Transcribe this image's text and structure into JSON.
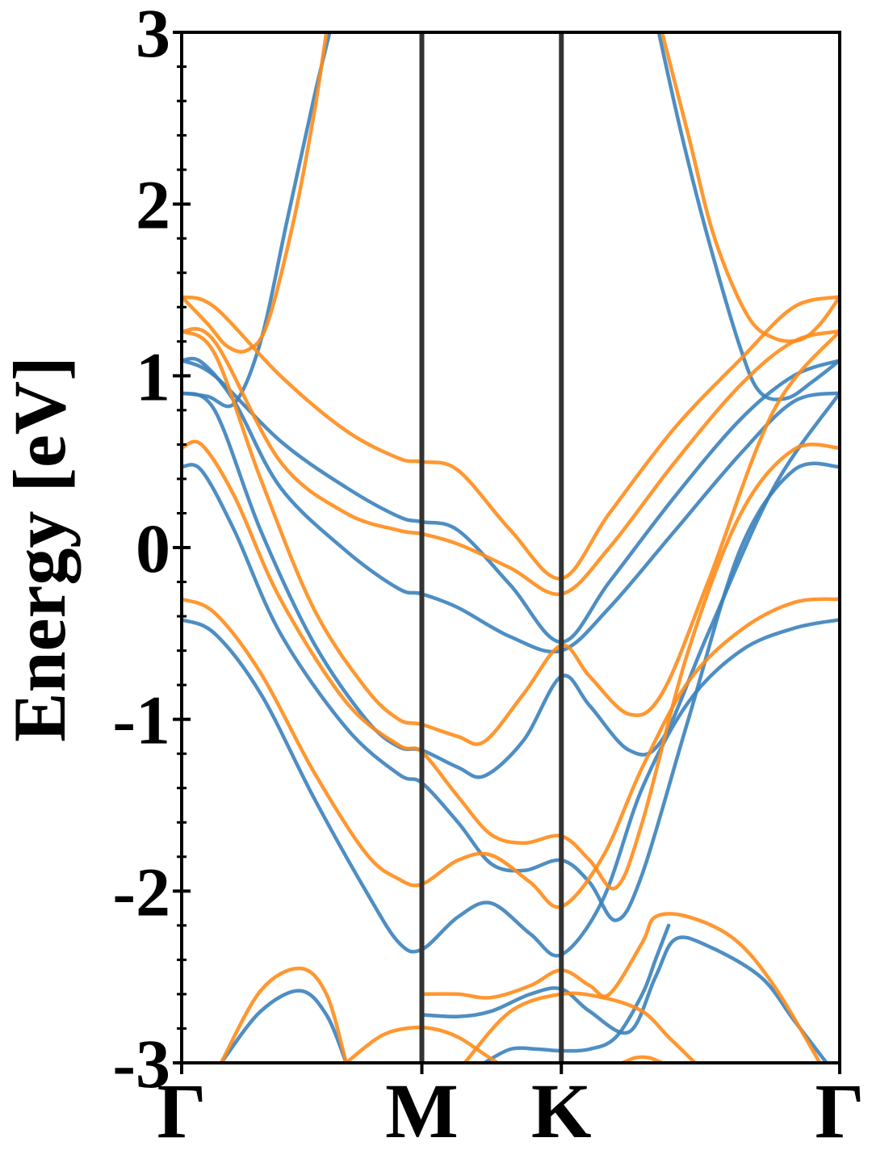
{
  "chart_data": {
    "type": "line",
    "title": "",
    "xlabel": "",
    "ylabel": "Energy [eV]",
    "ylim": [
      -3,
      3
    ],
    "xlim": [
      0,
      1
    ],
    "grid": false,
    "legend": "none",
    "yticks": [
      -3,
      -2,
      -1,
      0,
      1,
      2,
      3
    ],
    "ytick_labels": [
      "-3",
      "-2",
      "-1",
      "0",
      "1",
      "2",
      "3"
    ],
    "xticks": [
      0,
      0.365,
      0.577,
      1
    ],
    "xtick_labels": [
      "Γ",
      "M",
      "K",
      "Γ"
    ],
    "colors": {
      "blue": "#3b82bd",
      "orange": "#ff8c1a",
      "kline": "#333333"
    },
    "series": [
      {
        "color": "#3b82bd",
        "points": [
          [
            0,
            -0.42
          ],
          [
            0.05,
            -0.5
          ],
          [
            0.12,
            -0.85
          ],
          [
            0.2,
            -1.45
          ],
          [
            0.28,
            -2.0
          ],
          [
            0.33,
            -2.3
          ],
          [
            0.365,
            -2.34
          ],
          [
            0.42,
            -2.15
          ],
          [
            0.47,
            -2.07
          ],
          [
            0.53,
            -2.25
          ],
          [
            0.577,
            -2.37
          ],
          [
            0.64,
            -2.05
          ],
          [
            0.7,
            -1.4
          ],
          [
            0.77,
            -0.9
          ],
          [
            0.85,
            -0.6
          ],
          [
            0.93,
            -0.47
          ],
          [
            1,
            -0.42
          ]
        ]
      },
      {
        "color": "#3b82bd",
        "points": [
          [
            0,
            0.47
          ],
          [
            0.03,
            0.45
          ],
          [
            0.08,
            0.1
          ],
          [
            0.15,
            -0.5
          ],
          [
            0.25,
            -1.05
          ],
          [
            0.33,
            -1.32
          ],
          [
            0.365,
            -1.37
          ],
          [
            0.42,
            -1.6
          ],
          [
            0.47,
            -1.84
          ],
          [
            0.52,
            -1.88
          ],
          [
            0.577,
            -1.82
          ],
          [
            0.62,
            -1.95
          ],
          [
            0.66,
            -2.17
          ],
          [
            0.7,
            -1.9
          ],
          [
            0.77,
            -1.0
          ],
          [
            0.85,
            0.0
          ],
          [
            0.93,
            0.45
          ],
          [
            1,
            0.47
          ]
        ]
      },
      {
        "color": "#3b82bd",
        "points": [
          [
            0,
            0.9
          ],
          [
            0.05,
            0.8
          ],
          [
            0.12,
            0.1
          ],
          [
            0.2,
            -0.55
          ],
          [
            0.28,
            -1.0
          ],
          [
            0.33,
            -1.16
          ],
          [
            0.365,
            -1.18
          ],
          [
            0.42,
            -1.28
          ],
          [
            0.46,
            -1.33
          ],
          [
            0.52,
            -1.12
          ],
          [
            0.577,
            -0.75
          ],
          [
            0.62,
            -0.92
          ],
          [
            0.68,
            -1.18
          ],
          [
            0.73,
            -1.12
          ],
          [
            0.8,
            -0.5
          ],
          [
            0.9,
            0.35
          ],
          [
            1,
            0.9
          ]
        ]
      },
      {
        "color": "#3b82bd",
        "points": [
          [
            0,
            1.09
          ],
          [
            0.03,
            1.08
          ],
          [
            0.08,
            0.85
          ],
          [
            0.15,
            0.35
          ],
          [
            0.25,
            -0.02
          ],
          [
            0.33,
            -0.24
          ],
          [
            0.365,
            -0.27
          ],
          [
            0.42,
            -0.35
          ],
          [
            0.5,
            -0.52
          ],
          [
            0.577,
            -0.6
          ],
          [
            0.65,
            -0.35
          ],
          [
            0.75,
            0.1
          ],
          [
            0.85,
            0.55
          ],
          [
            0.93,
            0.85
          ],
          [
            1,
            0.9
          ]
        ]
      },
      {
        "color": "#3b82bd",
        "points": [
          [
            0,
            1.09
          ],
          [
            0.05,
            1.0
          ],
          [
            0.15,
            0.62
          ],
          [
            0.25,
            0.35
          ],
          [
            0.33,
            0.18
          ],
          [
            0.365,
            0.15
          ],
          [
            0.42,
            0.1
          ],
          [
            0.5,
            -0.22
          ],
          [
            0.577,
            -0.55
          ],
          [
            0.65,
            -0.2
          ],
          [
            0.75,
            0.3
          ],
          [
            0.85,
            0.75
          ],
          [
            0.93,
            1.0
          ],
          [
            1,
            1.09
          ]
        ]
      },
      {
        "color": "#3b82bd",
        "points": [
          [
            0,
            0.9
          ],
          [
            0.04,
            0.88
          ],
          [
            0.08,
            0.84
          ],
          [
            0.12,
            1.2
          ],
          [
            0.16,
            1.9
          ],
          [
            0.2,
            2.6
          ],
          [
            0.225,
            3.0
          ]
        ]
      },
      {
        "color": "#3b82bd",
        "points": [
          [
            0.725,
            3.0
          ],
          [
            0.76,
            2.4
          ],
          [
            0.8,
            1.8
          ],
          [
            0.85,
            1.15
          ],
          [
            0.88,
            0.9
          ],
          [
            0.92,
            0.87
          ],
          [
            0.96,
            0.97
          ],
          [
            1,
            1.09
          ]
        ]
      },
      {
        "color": "#3b82bd",
        "points": [
          [
            0.06,
            -3.0
          ],
          [
            0.12,
            -2.7
          ],
          [
            0.18,
            -2.58
          ],
          [
            0.22,
            -2.72
          ],
          [
            0.25,
            -3.0
          ]
        ]
      },
      {
        "color": "#3b82bd",
        "points": [
          [
            0.365,
            -2.72
          ],
          [
            0.42,
            -2.73
          ],
          [
            0.47,
            -2.7
          ],
          [
            0.53,
            -2.6
          ],
          [
            0.577,
            -2.57
          ],
          [
            0.62,
            -2.7
          ],
          [
            0.68,
            -2.82
          ],
          [
            0.72,
            -2.5
          ],
          [
            0.75,
            -2.28
          ],
          [
            0.8,
            -2.32
          ],
          [
            0.88,
            -2.5
          ],
          [
            0.93,
            -2.75
          ],
          [
            0.98,
            -3.0
          ]
        ]
      },
      {
        "color": "#3b82bd",
        "points": [
          [
            0.46,
            -3.0
          ],
          [
            0.5,
            -2.92
          ],
          [
            0.54,
            -2.92
          ],
          [
            0.577,
            -2.93
          ],
          [
            0.62,
            -2.92
          ],
          [
            0.66,
            -2.85
          ],
          [
            0.7,
            -2.6
          ],
          [
            0.72,
            -2.4
          ],
          [
            0.74,
            -2.2
          ]
        ]
      },
      {
        "color": "#ff8c1a",
        "points": [
          [
            0,
            -0.3
          ],
          [
            0.05,
            -0.38
          ],
          [
            0.12,
            -0.73
          ],
          [
            0.2,
            -1.3
          ],
          [
            0.28,
            -1.78
          ],
          [
            0.33,
            -1.93
          ],
          [
            0.365,
            -1.96
          ],
          [
            0.42,
            -1.82
          ],
          [
            0.47,
            -1.79
          ],
          [
            0.53,
            -1.95
          ],
          [
            0.577,
            -2.09
          ],
          [
            0.64,
            -1.8
          ],
          [
            0.7,
            -1.28
          ],
          [
            0.77,
            -0.78
          ],
          [
            0.85,
            -0.48
          ],
          [
            0.93,
            -0.32
          ],
          [
            1,
            -0.3
          ]
        ]
      },
      {
        "color": "#ff8c1a",
        "points": [
          [
            0,
            0.58
          ],
          [
            0.03,
            0.6
          ],
          [
            0.08,
            0.3
          ],
          [
            0.15,
            -0.3
          ],
          [
            0.25,
            -0.9
          ],
          [
            0.33,
            -1.15
          ],
          [
            0.365,
            -1.19
          ],
          [
            0.42,
            -1.45
          ],
          [
            0.47,
            -1.67
          ],
          [
            0.52,
            -1.72
          ],
          [
            0.577,
            -1.68
          ],
          [
            0.62,
            -1.82
          ],
          [
            0.66,
            -1.98
          ],
          [
            0.7,
            -1.6
          ],
          [
            0.77,
            -0.6
          ],
          [
            0.85,
            0.2
          ],
          [
            0.93,
            0.57
          ],
          [
            1,
            0.58
          ]
        ]
      },
      {
        "color": "#ff8c1a",
        "points": [
          [
            0,
            1.26
          ],
          [
            0.05,
            1.13
          ],
          [
            0.12,
            0.4
          ],
          [
            0.2,
            -0.35
          ],
          [
            0.28,
            -0.82
          ],
          [
            0.33,
            -1.0
          ],
          [
            0.365,
            -1.03
          ],
          [
            0.42,
            -1.1
          ],
          [
            0.46,
            -1.13
          ],
          [
            0.52,
            -0.85
          ],
          [
            0.577,
            -0.57
          ],
          [
            0.62,
            -0.75
          ],
          [
            0.68,
            -0.97
          ],
          [
            0.73,
            -0.85
          ],
          [
            0.8,
            -0.2
          ],
          [
            0.9,
            0.8
          ],
          [
            1,
            1.26
          ]
        ]
      },
      {
        "color": "#ff8c1a",
        "points": [
          [
            0,
            1.26
          ],
          [
            0.05,
            1.2
          ],
          [
            0.15,
            0.5
          ],
          [
            0.25,
            0.2
          ],
          [
            0.33,
            0.1
          ],
          [
            0.365,
            0.08
          ],
          [
            0.42,
            0.02
          ],
          [
            0.5,
            -0.12
          ],
          [
            0.577,
            -0.27
          ],
          [
            0.65,
            0.0
          ],
          [
            0.75,
            0.5
          ],
          [
            0.85,
            0.95
          ],
          [
            0.93,
            1.2
          ],
          [
            1,
            1.26
          ]
        ]
      },
      {
        "color": "#ff8c1a",
        "points": [
          [
            0,
            1.46
          ],
          [
            0.05,
            1.4
          ],
          [
            0.15,
            1.0
          ],
          [
            0.25,
            0.68
          ],
          [
            0.33,
            0.52
          ],
          [
            0.365,
            0.5
          ],
          [
            0.42,
            0.45
          ],
          [
            0.5,
            0.1
          ],
          [
            0.577,
            -0.18
          ],
          [
            0.65,
            0.2
          ],
          [
            0.75,
            0.7
          ],
          [
            0.85,
            1.1
          ],
          [
            0.93,
            1.4
          ],
          [
            1,
            1.46
          ]
        ]
      },
      {
        "color": "#ff8c1a",
        "points": [
          [
            0,
            1.46
          ],
          [
            0.04,
            1.3
          ],
          [
            0.07,
            1.17
          ],
          [
            0.1,
            1.15
          ],
          [
            0.13,
            1.3
          ],
          [
            0.17,
            1.9
          ],
          [
            0.2,
            2.5
          ],
          [
            0.22,
            3.0
          ]
        ]
      },
      {
        "color": "#ff8c1a",
        "points": [
          [
            0.73,
            3.0
          ],
          [
            0.77,
            2.4
          ],
          [
            0.81,
            1.8
          ],
          [
            0.86,
            1.35
          ],
          [
            0.9,
            1.22
          ],
          [
            0.94,
            1.21
          ],
          [
            0.97,
            1.3
          ],
          [
            1,
            1.46
          ]
        ]
      },
      {
        "color": "#ff8c1a",
        "points": [
          [
            0.06,
            -3.0
          ],
          [
            0.12,
            -2.58
          ],
          [
            0.18,
            -2.45
          ],
          [
            0.22,
            -2.6
          ],
          [
            0.25,
            -3.0
          ]
        ]
      },
      {
        "color": "#ff8c1a",
        "points": [
          [
            0.365,
            -2.6
          ],
          [
            0.42,
            -2.6
          ],
          [
            0.47,
            -2.62
          ],
          [
            0.53,
            -2.55
          ],
          [
            0.577,
            -2.46
          ],
          [
            0.62,
            -2.55
          ],
          [
            0.65,
            -2.6
          ],
          [
            0.7,
            -2.3
          ],
          [
            0.72,
            -2.15
          ],
          [
            0.77,
            -2.15
          ],
          [
            0.84,
            -2.28
          ],
          [
            0.9,
            -2.55
          ],
          [
            0.97,
            -3.0
          ]
        ]
      },
      {
        "color": "#ff8c1a",
        "points": [
          [
            0.25,
            -3.0
          ],
          [
            0.3,
            -2.85
          ],
          [
            0.34,
            -2.8
          ],
          [
            0.38,
            -2.8
          ],
          [
            0.42,
            -2.85
          ],
          [
            0.46,
            -2.95
          ],
          [
            0.48,
            -3.0
          ]
        ]
      },
      {
        "color": "#ff8c1a",
        "points": [
          [
            0.43,
            -3.0
          ],
          [
            0.5,
            -2.7
          ],
          [
            0.577,
            -2.6
          ],
          [
            0.64,
            -2.62
          ],
          [
            0.7,
            -2.7
          ],
          [
            0.74,
            -2.85
          ],
          [
            0.78,
            -3.0
          ]
        ]
      },
      {
        "color": "#ff8c1a",
        "points": [
          [
            0.67,
            -3.0
          ],
          [
            0.69,
            -2.97
          ],
          [
            0.71,
            -2.97
          ],
          [
            0.73,
            -3.0
          ]
        ]
      }
    ],
    "vertical_lines": [
      0.365,
      0.577
    ]
  }
}
